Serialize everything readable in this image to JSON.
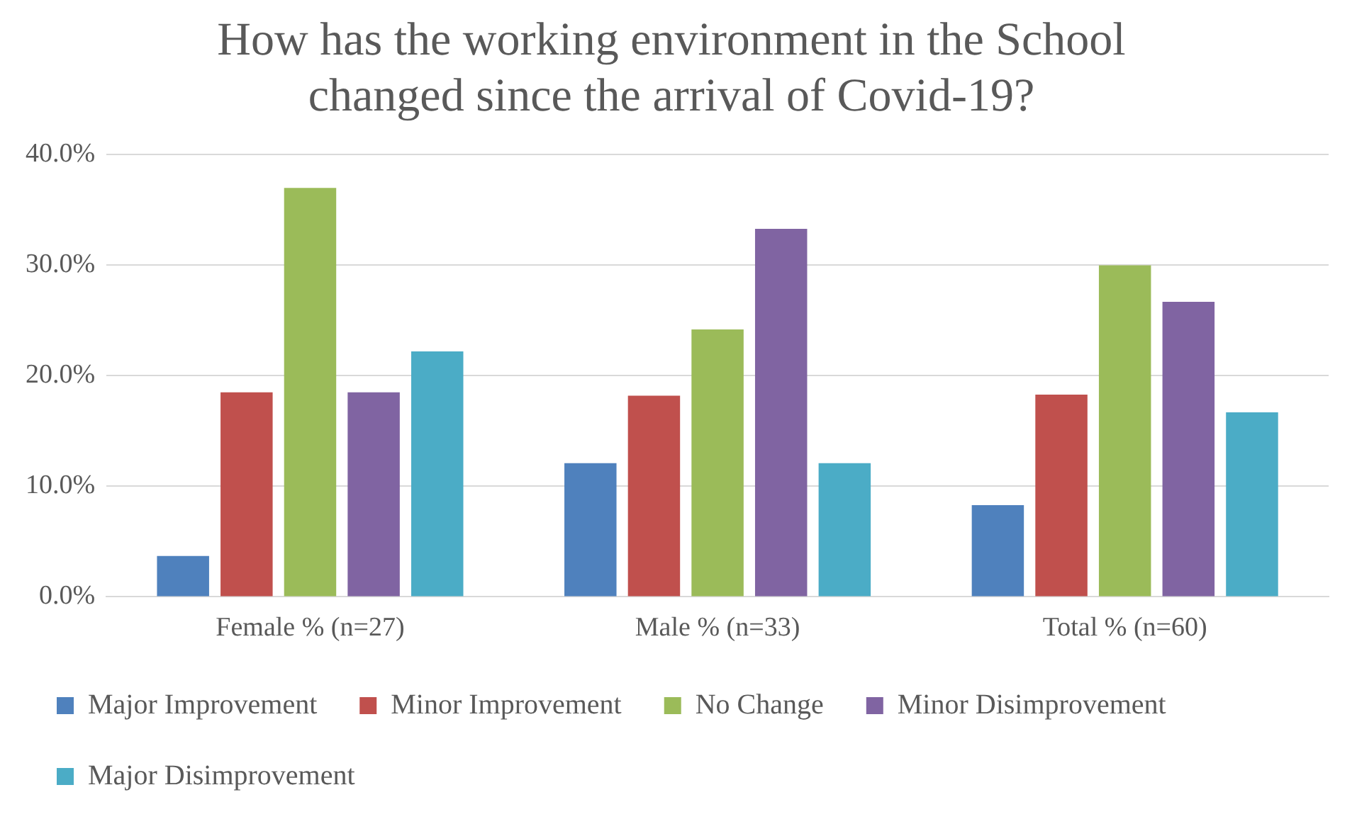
{
  "chart_data": {
    "type": "bar",
    "title": "How has the working environment in the School changed since the arrival of Covid-19?",
    "categories": [
      "Female % (n=27)",
      "Male % (n=33)",
      "Total % (n=60)"
    ],
    "series": [
      {
        "name": "Major Improvement",
        "color": "#4f81bd",
        "values": [
          3.7,
          12.1,
          8.3
        ]
      },
      {
        "name": "Minor Improvement",
        "color": "#c0504d",
        "values": [
          18.5,
          18.2,
          18.3
        ]
      },
      {
        "name": "No Change",
        "color": "#9bbb59",
        "values": [
          37.0,
          24.2,
          30.0
        ]
      },
      {
        "name": "Minor Disimprovement",
        "color": "#8064a2",
        "values": [
          18.5,
          33.3,
          26.7
        ]
      },
      {
        "name": "Major Disimprovement",
        "color": "#4bacc6",
        "values": [
          22.2,
          12.1,
          16.7
        ]
      }
    ],
    "ylim": [
      0,
      40
    ],
    "yticks": [
      {
        "value": 0,
        "label": "0.0%"
      },
      {
        "value": 10,
        "label": "10.0%"
      },
      {
        "value": 20,
        "label": "20.0%"
      },
      {
        "value": 30,
        "label": "30.0%"
      },
      {
        "value": 40,
        "label": "40.0%"
      }
    ],
    "grid": "y",
    "legend": "bottom"
  }
}
